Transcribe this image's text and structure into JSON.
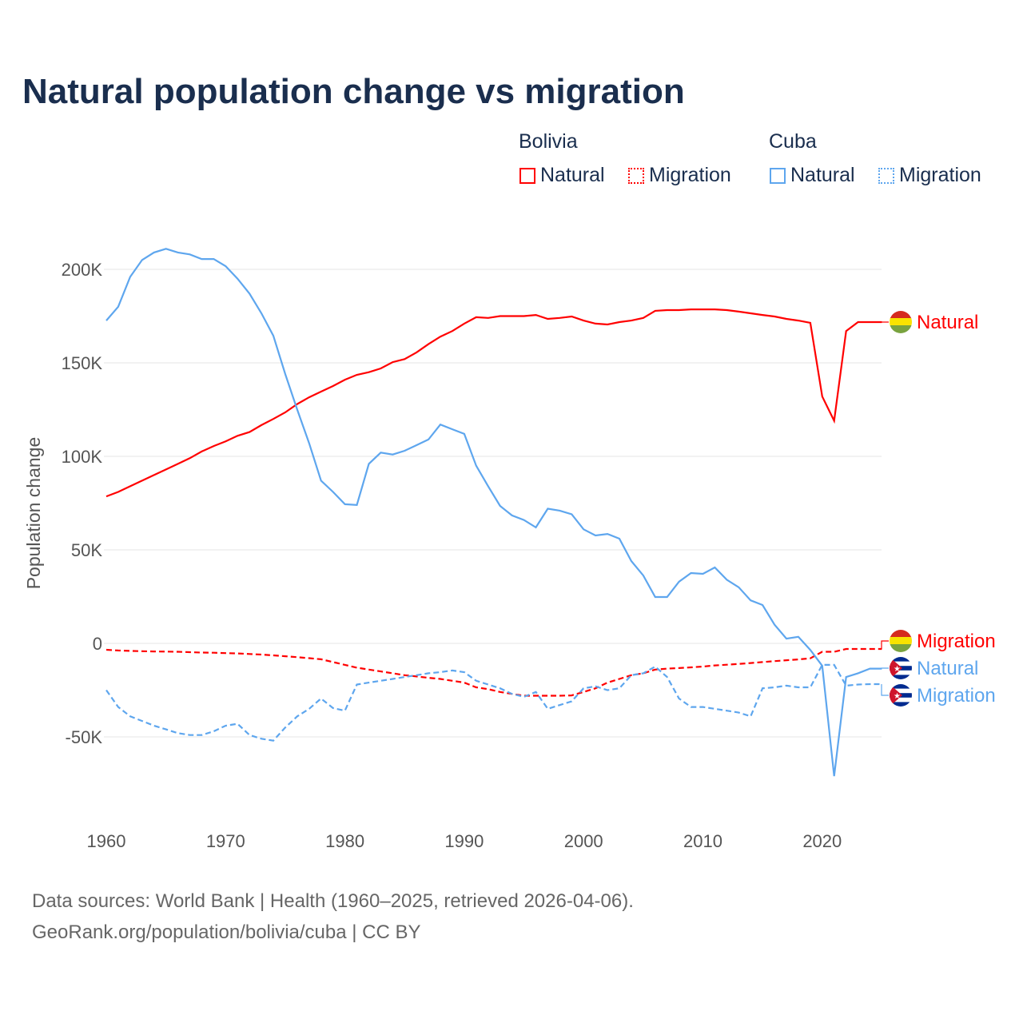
{
  "title": "Natural population change vs migration",
  "legend": {
    "groups": [
      {
        "country": "Bolivia",
        "items": [
          "Natural",
          "Migration"
        ],
        "color": "#ff0000"
      },
      {
        "country": "Cuba",
        "items": [
          "Natural",
          "Migration"
        ],
        "color": "#5ea6ee"
      }
    ]
  },
  "footer": [
    "Data sources: World Bank | Health (1960–2025, retrieved 2026-04-06).",
    "GeoRank.org/population/bolivia/cuba | CC BY"
  ],
  "chart_data": {
    "type": "line",
    "title": "Natural population change vs migration",
    "ylabel": "Population change",
    "xlim": [
      1960,
      2025
    ],
    "ylim": [
      -80000,
      220000
    ],
    "xticks": [
      "1960",
      "1970",
      "1980",
      "1990",
      "2000",
      "2010",
      "2020"
    ],
    "yticks": [
      {
        "v": 200000,
        "l": "200K"
      },
      {
        "v": 150000,
        "l": "150K"
      },
      {
        "v": 100000,
        "l": "100K"
      },
      {
        "v": 50000,
        "l": "50K"
      },
      {
        "v": 0,
        "l": "0"
      },
      {
        "v": -50000,
        "l": "-50K"
      }
    ],
    "start_year": 1960,
    "series": [
      {
        "name": "Bolivia Natural",
        "label": "Natural",
        "color": "#ff0000",
        "dash": false,
        "values": [
          78.6,
          81,
          84,
          87,
          90,
          93,
          96,
          99,
          102.6,
          105.5,
          108,
          111,
          113,
          116.7,
          120,
          123.5,
          128,
          131.6,
          134.6,
          137.6,
          141,
          143.6,
          145,
          147,
          150.4,
          152,
          155.6,
          160,
          164,
          167,
          171,
          174.4,
          174,
          175,
          175,
          175,
          175.6,
          173.5,
          174,
          174.8,
          172.6,
          171,
          170.5,
          171.8,
          172.6,
          174,
          177.8,
          178.2,
          178.2,
          178.6,
          178.6,
          178.6,
          178.2,
          177.4,
          176.5,
          175.6,
          174.8,
          173.5,
          172.6,
          171.4,
          132,
          119,
          167,
          171.8,
          171.8,
          171.8
        ]
      },
      {
        "name": "Bolivia Migration",
        "label": "Migration",
        "color": "#ff0000",
        "dash": true,
        "values": [
          -3.4,
          -3.8,
          -4,
          -4.2,
          -4.3,
          -4.4,
          -4.5,
          -4.7,
          -4.9,
          -5,
          -5.2,
          -5.4,
          -5.7,
          -6,
          -6.4,
          -6.9,
          -7.4,
          -7.9,
          -8.5,
          -10,
          -11.5,
          -13,
          -14,
          -15,
          -16,
          -17,
          -17.7,
          -18.4,
          -19,
          -20,
          -21,
          -23.5,
          -24.5,
          -26,
          -27,
          -28,
          -28,
          -28,
          -28,
          -27.8,
          -26,
          -24,
          -21,
          -19,
          -17,
          -16,
          -14,
          -13.5,
          -13.2,
          -12.8,
          -12.4,
          -11.8,
          -11.4,
          -11,
          -10.5,
          -10,
          -9.5,
          -9,
          -8.6,
          -8,
          -4.5,
          -4.5,
          -3,
          -3,
          -3,
          -3
        ]
      },
      {
        "name": "Cuba Natural",
        "label": "Natural",
        "color": "#5ea6ee",
        "dash": false,
        "values": [
          172.6,
          180,
          196,
          205,
          209,
          211,
          209,
          208,
          205.5,
          205.5,
          201.7,
          195,
          187,
          176.5,
          164.5,
          144,
          125,
          107,
          87,
          81,
          74.4,
          74,
          96,
          102,
          101,
          103,
          106,
          109,
          117,
          114.5,
          112,
          95,
          84,
          73.5,
          68.4,
          66,
          62,
          72,
          71,
          69,
          61,
          57.7,
          58.5,
          56,
          44,
          36.3,
          24.8,
          24.8,
          33,
          37.6,
          37.2,
          40.6,
          34,
          30,
          23,
          20.5,
          10,
          2.5,
          3.5,
          -3.5,
          -12,
          -71,
          -18,
          -16,
          -13.5,
          -13.5
        ]
      },
      {
        "name": "Cuba Migration",
        "label": "Migration",
        "color": "#5ea6ee",
        "dash": true,
        "values": [
          -25,
          -34,
          -39,
          -41.5,
          -44,
          -46,
          -48,
          -49,
          -49,
          -47,
          -44,
          -43,
          -49,
          -51,
          -52,
          -45,
          -39,
          -35,
          -29.5,
          -34.6,
          -36,
          -22,
          -21,
          -20,
          -19,
          -18,
          -17,
          -16,
          -15.4,
          -14.5,
          -15.4,
          -20,
          -22,
          -24,
          -27,
          -28.6,
          -26,
          -35,
          -33,
          -31,
          -24,
          -23,
          -25,
          -24,
          -17,
          -16,
          -12.4,
          -18,
          -29.5,
          -34,
          -34,
          -35,
          -36,
          -37,
          -39,
          -24,
          -23.5,
          -22.6,
          -23.5,
          -23.5,
          -11.5,
          -11.5,
          -22.6,
          -22,
          -21.8,
          -21.8
        ]
      }
    ],
    "value_unit": "thousands"
  }
}
